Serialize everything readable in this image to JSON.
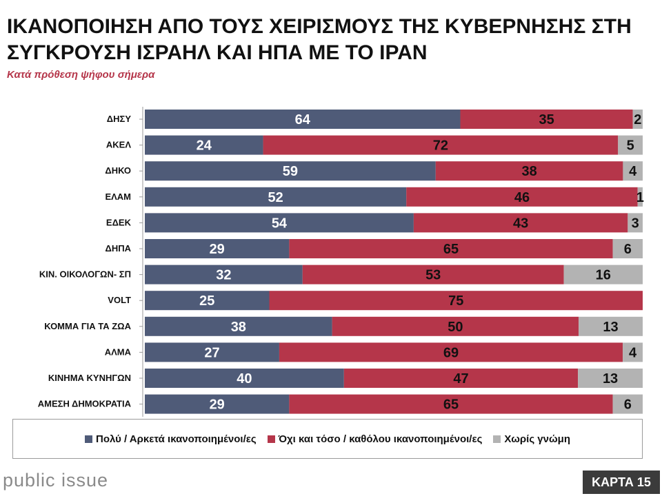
{
  "title": "ΙΚΑΝΟΠΟΙΗΣΗ ΑΠΟ ΤΟΥΣ ΧΕΙΡΙΣΜΟΥΣ ΤΗΣ ΚΥΒΕΡΝΗΣΗΣ ΣΤΗ ΣΥΓΚΡΟΥΣΗ ΙΣΡΑΗΛ ΚΑΙ ΗΠΑ ΜΕ ΤΟ ΙΡΑΝ",
  "subtitle": "Κατά πρόθεση ψήφου σήμερα",
  "footer": {
    "logo": "public issue",
    "badge": "ΚΑΡΤΑ 15"
  },
  "colors": {
    "satisfied": "#4f5b78",
    "not_satisfied": "#b5364a",
    "no_opinion": "#b3b3b3"
  },
  "chart_data": {
    "type": "bar",
    "orientation": "horizontal",
    "stacked": true,
    "categories": [
      "ΔΗΣΥ",
      "ΑΚΕΛ",
      "ΔΗΚΟ",
      "ΕΛΑΜ",
      "ΕΔΕΚ",
      "ΔΗΠΑ",
      "ΚΙΝ. ΟΙΚΟΛΟΓΩΝ- ΣΠ",
      "VOLT",
      "ΚΟΜΜΑ ΓΙΑ ΤΑ ΖΩΑ",
      "ΑΛΜΑ",
      "ΚΙΝΗΜΑ ΚΥΝΗΓΩΝ",
      "ΑΜΕΣΗ ΔΗΜΟΚΡΑΤΙΑ"
    ],
    "series": [
      {
        "name": "Πολύ / Αρκετά ικανοποιημένοι/ες",
        "color": "#4f5b78",
        "values": [
          64,
          24,
          59,
          52,
          54,
          29,
          32,
          25,
          38,
          27,
          40,
          29
        ]
      },
      {
        "name": "Όχι και τόσο / καθόλου ικανοποιημένοι/ες",
        "color": "#b5364a",
        "values": [
          35,
          72,
          38,
          46,
          43,
          65,
          53,
          75,
          50,
          69,
          47,
          65
        ]
      },
      {
        "name": "Χωρίς γνώμη",
        "color": "#b3b3b3",
        "values": [
          2,
          5,
          4,
          1,
          3,
          6,
          16,
          0,
          13,
          4,
          13,
          6
        ]
      }
    ],
    "legend_position": "bottom",
    "grid": false
  }
}
